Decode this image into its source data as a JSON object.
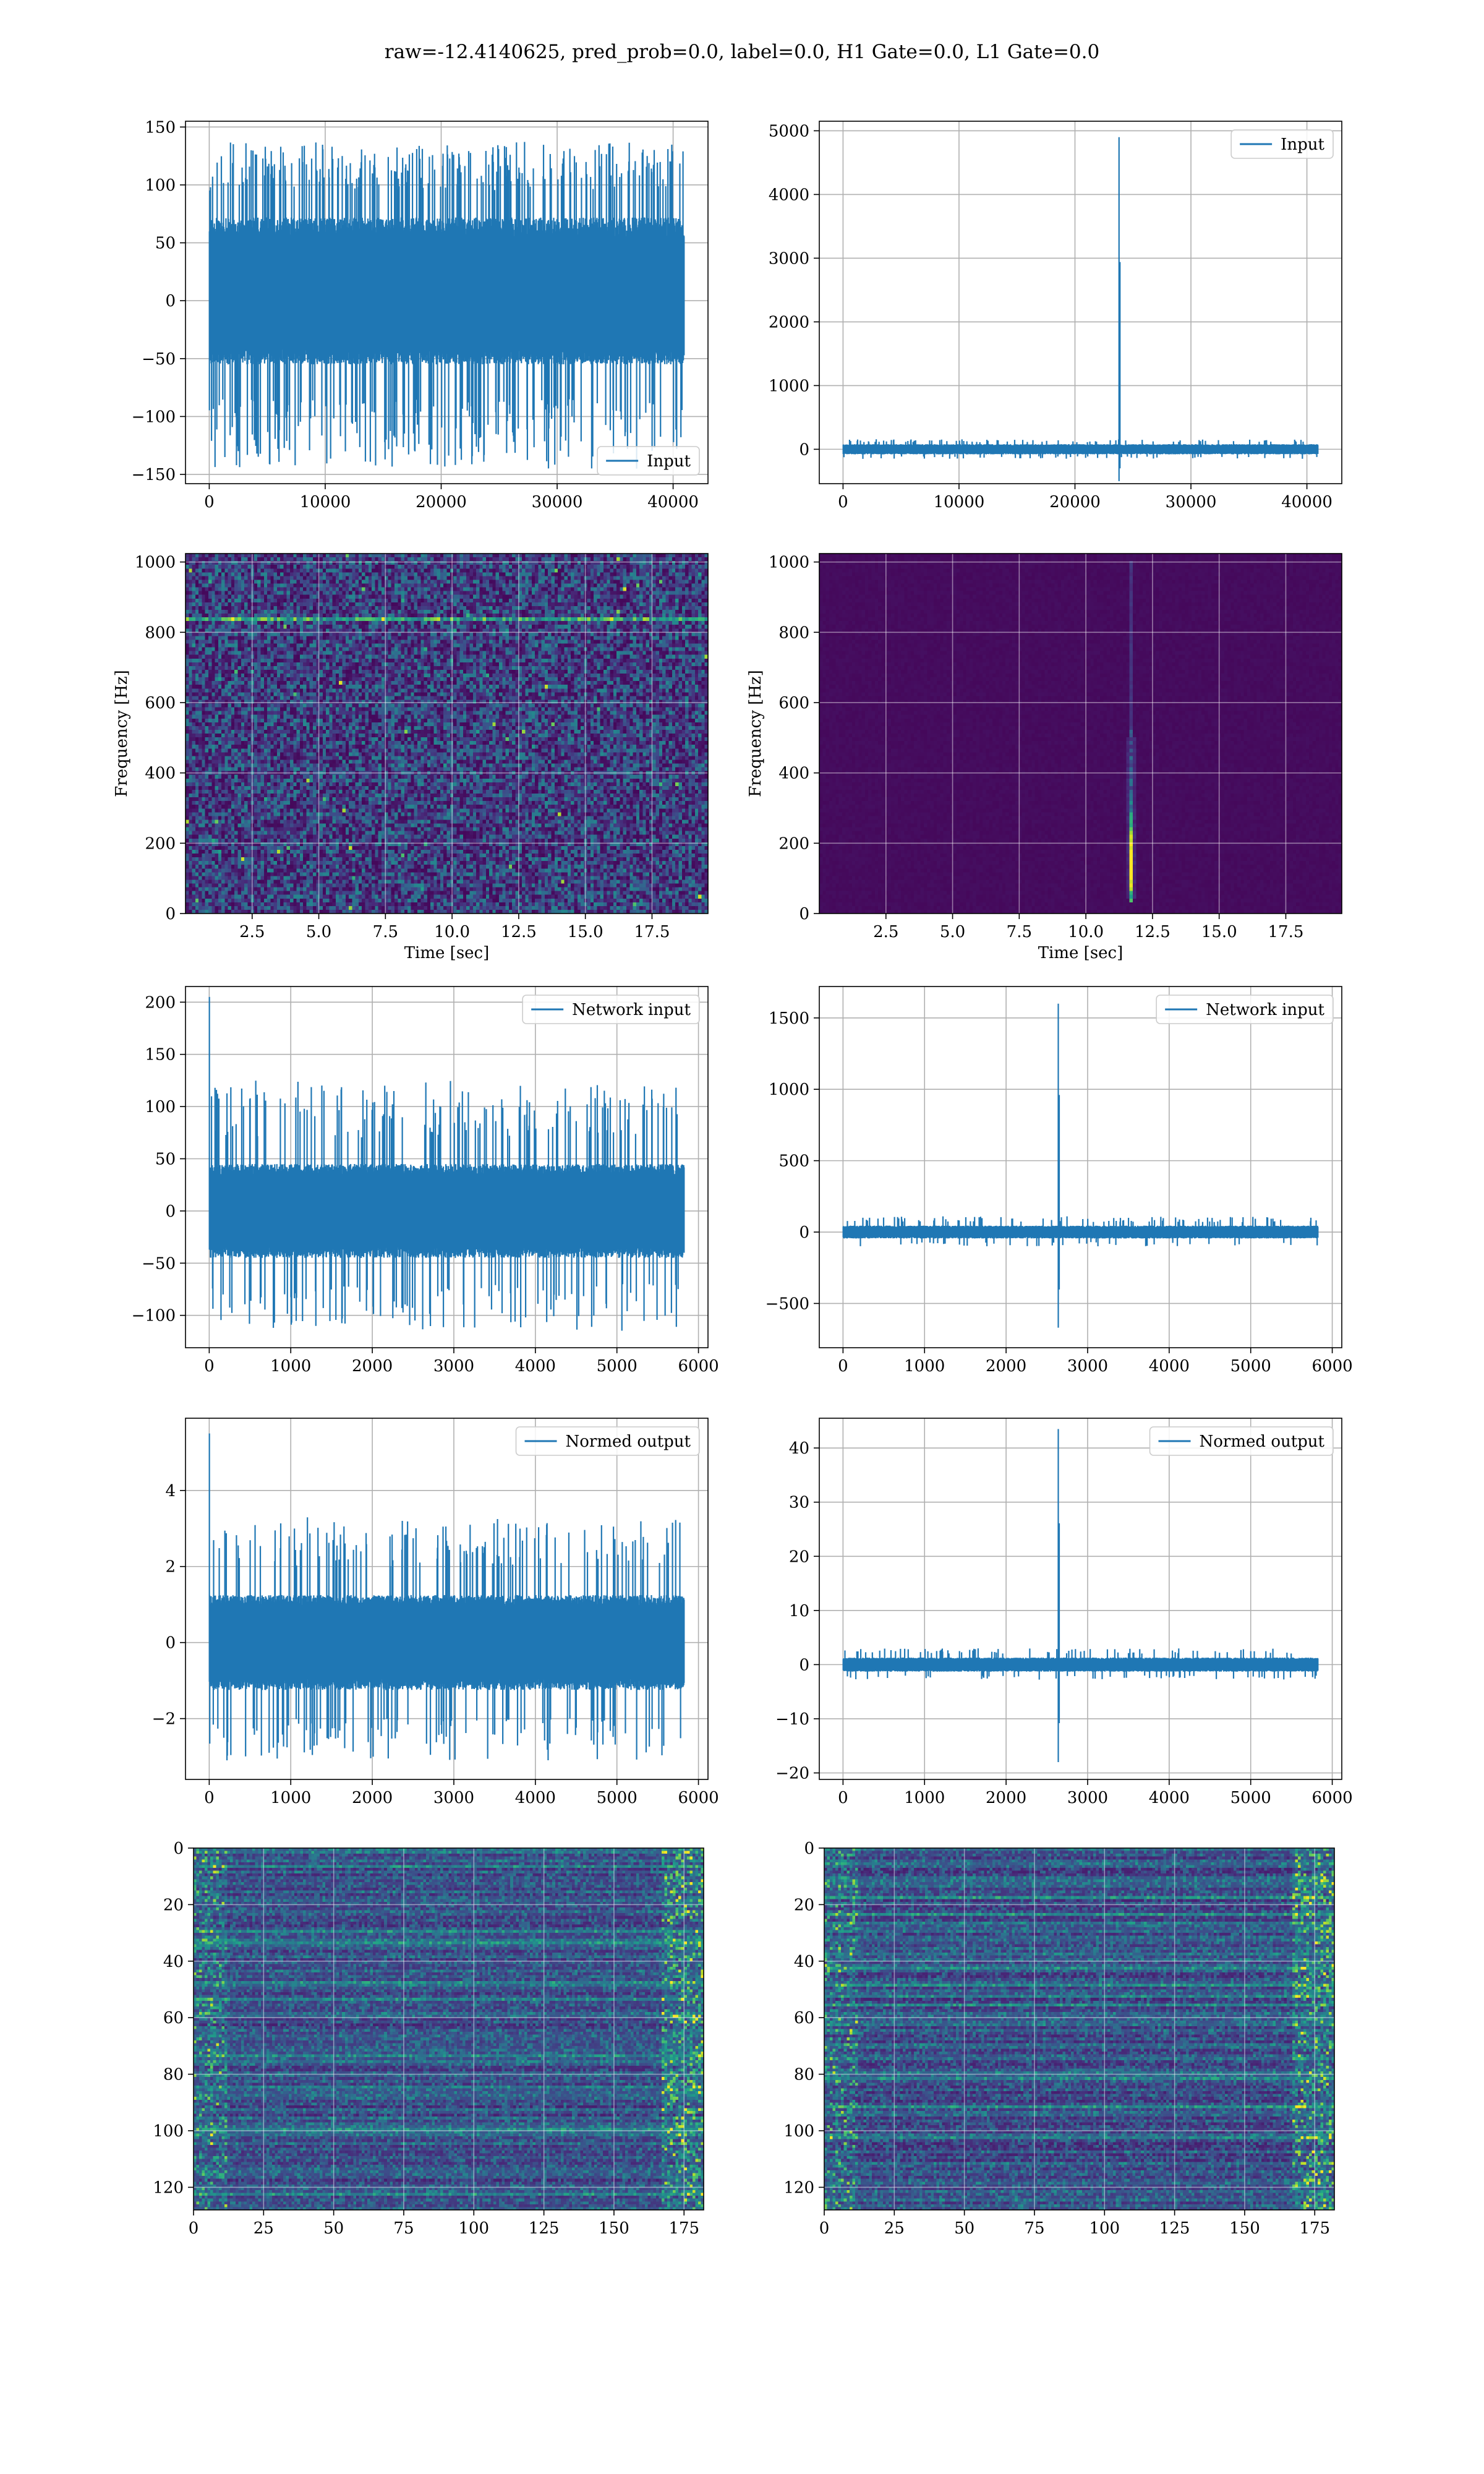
{
  "figure": {
    "suptitle": "raw=-12.4140625, pred_prob=0.0, label=0.0, H1 Gate=0.0, L1 Gate=0.0",
    "line_color": "#1f77b4",
    "grid_color": "#b0b0b0"
  },
  "chart_data": [
    {
      "id": "p1",
      "type": "line",
      "legend": "Input",
      "legend_loc": "lower-right",
      "xlim": [
        -2048,
        43008
      ],
      "ylim": [
        -158,
        155
      ],
      "xticks": [
        0,
        10000,
        20000,
        30000,
        40000
      ],
      "yticks": [
        -150,
        -100,
        -50,
        0,
        50,
        100,
        150
      ],
      "xticklabels": [
        "0",
        "10000",
        "20000",
        "30000",
        "40000"
      ],
      "yticklabels": [
        "−150",
        "−100",
        "−50",
        "0",
        "50",
        "100",
        "150"
      ],
      "xlabel": "",
      "ylabel": "",
      "grid": true,
      "signal": {
        "n": 40960,
        "x_end": 40960,
        "band": [
          -55,
          72
        ],
        "peak_max": [
          95,
          138
        ],
        "peak_min": [
          -85,
          -145
        ],
        "n_spikes": 520,
        "seed": 11
      }
    },
    {
      "id": "p2",
      "type": "line",
      "legend": "Input",
      "legend_loc": "upper-right",
      "xlim": [
        -2048,
        43008
      ],
      "ylim": [
        -540,
        5150
      ],
      "xticks": [
        0,
        10000,
        20000,
        30000,
        40000
      ],
      "yticks": [
        0,
        1000,
        2000,
        3000,
        4000,
        5000
      ],
      "xticklabels": [
        "0",
        "10000",
        "20000",
        "30000",
        "40000"
      ],
      "yticklabels": [
        "0",
        "1000",
        "2000",
        "3000",
        "4000",
        "5000"
      ],
      "xlabel": "",
      "ylabel": "",
      "grid": true,
      "signal": {
        "n": 40960,
        "x_end": 40960,
        "band": [
          -80,
          80
        ],
        "peak_max": [
          110,
          160
        ],
        "peak_min": [
          -110,
          -150
        ],
        "n_spikes": 140,
        "seed": 12,
        "glitch_x": 23800,
        "glitch_max": 4900,
        "glitch_min": -500
      }
    },
    {
      "id": "p3",
      "type": "heatmap",
      "colormap": "viridis",
      "style": "noise",
      "xlim": [
        0,
        19.6
      ],
      "ylim": [
        0,
        1024
      ],
      "xticks": [
        2.5,
        5.0,
        7.5,
        10.0,
        12.5,
        15.0,
        17.5
      ],
      "yticks": [
        0,
        200,
        400,
        600,
        800,
        1000
      ],
      "xticklabels": [
        "2.5",
        "5.0",
        "7.5",
        "10.0",
        "12.5",
        "15.0",
        "17.5"
      ],
      "yticklabels": [
        "0",
        "200",
        "400",
        "600",
        "800",
        "1000"
      ],
      "xlabel": "Time [sec]",
      "ylabel": "Frequency [Hz]",
      "grid": true,
      "features": {
        "bright_line_hz": 840,
        "seed": 21
      }
    },
    {
      "id": "p4",
      "type": "heatmap",
      "colormap": "viridis",
      "style": "glitch",
      "xlim": [
        0,
        19.6
      ],
      "ylim": [
        0,
        1024
      ],
      "xticks": [
        2.5,
        5.0,
        7.5,
        10.0,
        12.5,
        15.0,
        17.5
      ],
      "yticks": [
        0,
        200,
        400,
        600,
        800,
        1000
      ],
      "xticklabels": [
        "2.5",
        "5.0",
        "7.5",
        "10.0",
        "12.5",
        "15.0",
        "17.5"
      ],
      "yticklabels": [
        "0",
        "200",
        "400",
        "600",
        "800",
        "1000"
      ],
      "xlabel": "Time [sec]",
      "ylabel": "Frequency [Hz]",
      "grid": true,
      "features": {
        "glitch_time_sec": 11.65,
        "glitch_fmin_hz": 30,
        "glitch_fmax_hz": 1000,
        "peak_hz": 150,
        "seed": 22
      }
    },
    {
      "id": "p5",
      "type": "line",
      "legend": "Network input",
      "legend_loc": "upper-right",
      "xlim": [
        -291,
        6117
      ],
      "ylim": [
        -131,
        215
      ],
      "xticks": [
        0,
        1000,
        2000,
        3000,
        4000,
        5000,
        6000
      ],
      "yticks": [
        -100,
        -50,
        0,
        50,
        100,
        150,
        200
      ],
      "xticklabels": [
        "0",
        "1000",
        "2000",
        "3000",
        "4000",
        "5000",
        "6000"
      ],
      "yticklabels": [
        "−100",
        "−50",
        "0",
        "50",
        "100",
        "150",
        "200"
      ],
      "xlabel": "",
      "ylabel": "",
      "grid": true,
      "signal": {
        "n": 5826,
        "x_end": 5826,
        "band": [
          -45,
          45
        ],
        "peak_max": [
          70,
          125
        ],
        "peak_min": [
          -70,
          -115
        ],
        "n_spikes": 260,
        "seed": 31,
        "start_spike": 205
      }
    },
    {
      "id": "p6",
      "type": "line",
      "legend": "Network input",
      "legend_loc": "upper-right",
      "xlim": [
        -291,
        6117
      ],
      "ylim": [
        -810,
        1720
      ],
      "xticks": [
        0,
        1000,
        2000,
        3000,
        4000,
        5000,
        6000
      ],
      "yticks": [
        -500,
        0,
        500,
        1000,
        1500
      ],
      "xticklabels": [
        "0",
        "1000",
        "2000",
        "3000",
        "4000",
        "5000",
        "6000"
      ],
      "yticklabels": [
        "−500",
        "0",
        "500",
        "1000",
        "1500"
      ],
      "xlabel": "",
      "ylabel": "",
      "grid": true,
      "signal": {
        "n": 5826,
        "x_end": 5826,
        "band": [
          -45,
          45
        ],
        "peak_max": [
          70,
          110
        ],
        "peak_min": [
          -70,
          -100
        ],
        "n_spikes": 140,
        "seed": 32,
        "glitch_x": 2640,
        "glitch_max": 1600,
        "glitch_min": -670
      }
    },
    {
      "id": "p7",
      "type": "line",
      "legend": "Normed output",
      "legend_loc": "upper-right",
      "xlim": [
        -291,
        6117
      ],
      "ylim": [
        -3.6,
        5.9
      ],
      "xticks": [
        0,
        1000,
        2000,
        3000,
        4000,
        5000,
        6000
      ],
      "yticks": [
        -2,
        0,
        2,
        4
      ],
      "xticklabels": [
        "0",
        "1000",
        "2000",
        "3000",
        "4000",
        "5000",
        "6000"
      ],
      "yticklabels": [
        "−2",
        "0",
        "2",
        "4"
      ],
      "xlabel": "",
      "ylabel": "",
      "grid": true,
      "signal": {
        "n": 5826,
        "x_end": 5826,
        "band": [
          -1.25,
          1.25
        ],
        "peak_max": [
          2.0,
          3.3
        ],
        "peak_min": [
          -2.0,
          -3.1
        ],
        "n_spikes": 260,
        "seed": 41,
        "start_spike": 5.5
      }
    },
    {
      "id": "p8",
      "type": "line",
      "legend": "Normed output",
      "legend_loc": "upper-right",
      "xlim": [
        -291,
        6117
      ],
      "ylim": [
        -21.2,
        45.5
      ],
      "xticks": [
        0,
        1000,
        2000,
        3000,
        4000,
        5000,
        6000
      ],
      "yticks": [
        -20,
        -10,
        0,
        10,
        20,
        30,
        40
      ],
      "xticklabels": [
        "0",
        "1000",
        "2000",
        "3000",
        "4000",
        "5000",
        "6000"
      ],
      "yticklabels": [
        "−20",
        "−10",
        "0",
        "10",
        "20",
        "30",
        "40"
      ],
      "xlabel": "",
      "ylabel": "",
      "grid": true,
      "signal": {
        "n": 5826,
        "x_end": 5826,
        "band": [
          -1.3,
          1.3
        ],
        "peak_max": [
          2.0,
          3.0
        ],
        "peak_min": [
          -2.0,
          -2.8
        ],
        "n_spikes": 140,
        "seed": 42,
        "glitch_x": 2640,
        "glitch_max": 43.5,
        "glitch_min": -18
      }
    },
    {
      "id": "p9",
      "type": "heatmap",
      "colormap": "viridis",
      "style": "features",
      "xlim": [
        0,
        182
      ],
      "ylim": [
        128,
        0
      ],
      "xticks": [
        0,
        25,
        50,
        75,
        100,
        125,
        150,
        175
      ],
      "yticks": [
        0,
        20,
        40,
        60,
        80,
        100,
        120
      ],
      "xticklabels": [
        "0",
        "25",
        "50",
        "75",
        "100",
        "125",
        "150",
        "175"
      ],
      "yticklabels": [
        "0",
        "20",
        "40",
        "60",
        "80",
        "100",
        "120"
      ],
      "xlabel": "",
      "ylabel": "",
      "grid": true,
      "features": {
        "rows": 128,
        "cols": 182,
        "seed": 51
      }
    },
    {
      "id": "p10",
      "type": "heatmap",
      "colormap": "viridis",
      "style": "features",
      "xlim": [
        0,
        182
      ],
      "ylim": [
        128,
        0
      ],
      "xticks": [
        0,
        25,
        50,
        75,
        100,
        125,
        150,
        175
      ],
      "yticks": [
        0,
        20,
        40,
        60,
        80,
        100,
        120
      ],
      "xticklabels": [
        "0",
        "25",
        "50",
        "75",
        "100",
        "125",
        "150",
        "175"
      ],
      "yticklabels": [
        "0",
        "20",
        "40",
        "60",
        "80",
        "100",
        "120"
      ],
      "xlabel": "",
      "ylabel": "",
      "grid": true,
      "features": {
        "rows": 128,
        "cols": 182,
        "seed": 52
      }
    }
  ]
}
